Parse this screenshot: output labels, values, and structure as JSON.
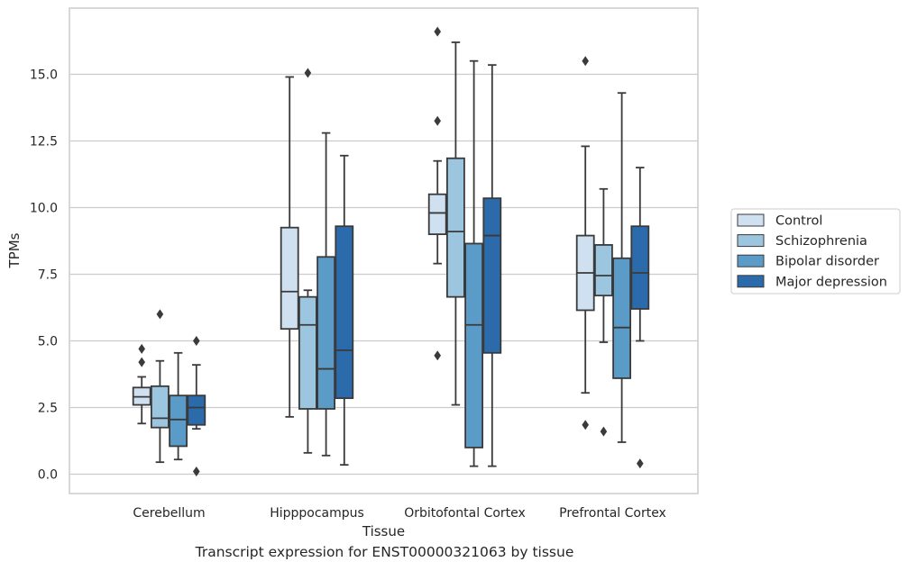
{
  "chart_data": {
    "type": "box",
    "xlabel": "Tissue",
    "ylabel": "TPMs",
    "caption": "Transcript expression for ENST00000321063 by tissue",
    "ylim": [
      -0.7,
      17.6
    ],
    "yticks": [
      "0.0",
      "2.5",
      "5.0",
      "7.5",
      "10.0",
      "12.5",
      "15.0"
    ],
    "ytick_values": [
      0,
      2.5,
      5,
      7.5,
      10,
      12.5,
      15
    ],
    "grid": "horizontal",
    "legend_position": "right",
    "categories": [
      "Cerebellum",
      "Hipppocampus",
      "Orbitofontal Cortex",
      "Prefrontal Cortex"
    ],
    "series": [
      {
        "name": "Control",
        "color": "#cfe0f0",
        "boxes": [
          {
            "whislo": 1.9,
            "q1": 2.6,
            "med": 2.9,
            "q3": 3.25,
            "whishi": 3.65,
            "fliers": [
              4.7,
              4.2
            ]
          },
          {
            "whislo": 2.15,
            "q1": 5.45,
            "med": 6.85,
            "q3": 9.25,
            "whishi": 14.9,
            "fliers": []
          },
          {
            "whislo": 7.9,
            "q1": 9.0,
            "med": 9.8,
            "q3": 10.5,
            "whishi": 11.75,
            "fliers": [
              16.6,
              13.25,
              4.45
            ]
          },
          {
            "whislo": 3.05,
            "q1": 6.15,
            "med": 7.55,
            "q3": 8.95,
            "whishi": 12.3,
            "fliers": [
              15.5,
              1.85
            ]
          }
        ]
      },
      {
        "name": "Schizophrenia",
        "color": "#9cc5df",
        "boxes": [
          {
            "whislo": 0.45,
            "q1": 1.75,
            "med": 2.1,
            "q3": 3.3,
            "whishi": 4.25,
            "fliers": [
              6.0
            ]
          },
          {
            "whislo": 0.8,
            "q1": 2.45,
            "med": 5.6,
            "q3": 6.65,
            "whishi": 6.9,
            "fliers": [
              15.05
            ]
          },
          {
            "whislo": 2.6,
            "q1": 6.65,
            "med": 9.1,
            "q3": 11.85,
            "whishi": 16.2,
            "fliers": []
          },
          {
            "whislo": 4.95,
            "q1": 6.7,
            "med": 7.45,
            "q3": 8.6,
            "whishi": 10.7,
            "fliers": [
              1.6
            ]
          }
        ]
      },
      {
        "name": "Bipolar disorder",
        "color": "#5b9bc7",
        "boxes": [
          {
            "whislo": 0.55,
            "q1": 1.05,
            "med": 2.05,
            "q3": 2.95,
            "whishi": 4.55,
            "fliers": []
          },
          {
            "whislo": 0.7,
            "q1": 2.45,
            "med": 3.95,
            "q3": 8.15,
            "whishi": 12.8,
            "fliers": []
          },
          {
            "whislo": 0.3,
            "q1": 1.0,
            "med": 5.6,
            "q3": 8.65,
            "whishi": 15.5,
            "fliers": []
          },
          {
            "whislo": 1.2,
            "q1": 3.6,
            "med": 5.5,
            "q3": 8.1,
            "whishi": 14.3,
            "fliers": []
          }
        ]
      },
      {
        "name": "Major depression",
        "color": "#2c6bab",
        "boxes": [
          {
            "whislo": 1.7,
            "q1": 1.85,
            "med": 2.5,
            "q3": 2.95,
            "whishi": 4.1,
            "fliers": [
              5.0,
              0.1
            ]
          },
          {
            "whislo": 0.35,
            "q1": 2.85,
            "med": 4.65,
            "q3": 9.3,
            "whishi": 11.95,
            "fliers": []
          },
          {
            "whislo": 0.3,
            "q1": 4.55,
            "med": 8.95,
            "q3": 10.35,
            "whishi": 15.35,
            "fliers": []
          },
          {
            "whislo": 5.0,
            "q1": 6.2,
            "med": 7.55,
            "q3": 9.3,
            "whishi": 11.5,
            "fliers": [
              0.4
            ]
          }
        ]
      }
    ]
  }
}
